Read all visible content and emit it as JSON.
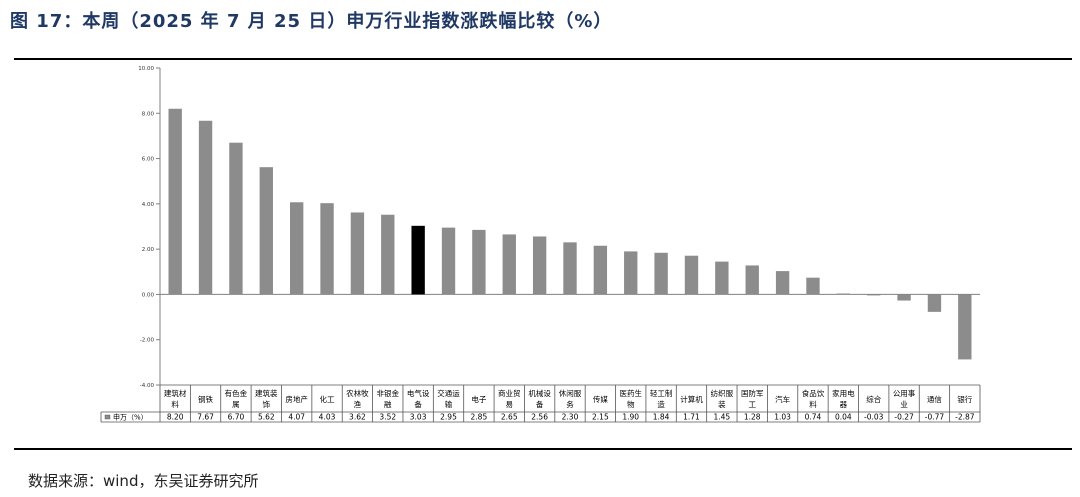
{
  "figure": {
    "title": "图 17：本周（2025 年 7 月 25 日）申万行业指数涨跌幅比较（%）",
    "source": "数据来源：wind，东吴证券研究所"
  },
  "chart_data": {
    "type": "bar",
    "series_name": "申万（%）",
    "categories": [
      [
        "建筑材",
        "料"
      ],
      [
        "钢铁"
      ],
      [
        "有色金",
        "属"
      ],
      [
        "建筑装",
        "饰"
      ],
      [
        "房地产"
      ],
      [
        "化工"
      ],
      [
        "农林牧",
        "渔"
      ],
      [
        "非银金",
        "融"
      ],
      [
        "电气设",
        "备"
      ],
      [
        "交通运",
        "输"
      ],
      [
        "电子"
      ],
      [
        "商业贸",
        "易"
      ],
      [
        "机械设",
        "备"
      ],
      [
        "休闲服",
        "务"
      ],
      [
        "传媒"
      ],
      [
        "医药生",
        "物"
      ],
      [
        "轻工制",
        "造"
      ],
      [
        "计算机"
      ],
      [
        "纺织服",
        "装"
      ],
      [
        "国防军",
        "工"
      ],
      [
        "汽车"
      ],
      [
        "食品饮",
        "料"
      ],
      [
        "家用电",
        "器"
      ],
      [
        "综合"
      ],
      [
        "公用事",
        "业"
      ],
      [
        "通信"
      ],
      [
        "银行"
      ]
    ],
    "values": [
      8.2,
      7.67,
      6.7,
      5.62,
      4.07,
      4.03,
      3.62,
      3.52,
      3.03,
      2.95,
      2.85,
      2.65,
      2.56,
      2.3,
      2.15,
      1.9,
      1.84,
      1.71,
      1.45,
      1.28,
      1.03,
      0.74,
      0.04,
      -0.03,
      -0.27,
      -0.77,
      -2.87
    ],
    "value_labels": [
      "8.20",
      "7.67",
      "6.70",
      "5.62",
      "4.07",
      "4.03",
      "3.62",
      "3.52",
      "3.03",
      "2.95",
      "2.85",
      "2.65",
      "2.56",
      "2.30",
      "2.15",
      "1.90",
      "1.84",
      "1.71",
      "1.45",
      "1.28",
      "1.03",
      "0.74",
      "0.04",
      "-0.03",
      "-0.27",
      "-0.77",
      "-2.87"
    ],
    "highlight_index": 8,
    "colors": {
      "bar": "#8c8c8c",
      "highlight": "#000000",
      "axis": "#808080"
    },
    "ylim": [
      -4,
      10
    ],
    "yticks": [
      10,
      8,
      6,
      4,
      2,
      0,
      -2,
      -4
    ],
    "ytick_labels": [
      "10.00",
      "8.00",
      "6.00",
      "4.00",
      "2.00",
      "0.00",
      "-2.00",
      "-4.00"
    ],
    "grid": false,
    "legend": "table-left"
  }
}
